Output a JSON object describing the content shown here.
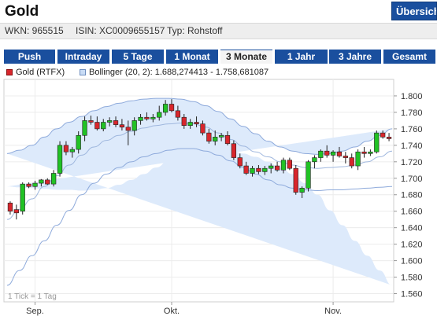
{
  "header": {
    "title": "Gold",
    "overview_button": "Übersicht"
  },
  "info": {
    "wkn": "WKN: 965515",
    "isin": "ISIN: XC0009655157",
    "typ": "Typ: Rohstoff"
  },
  "tabs": [
    {
      "label": "Push",
      "active": false
    },
    {
      "label": "Intraday",
      "active": false
    },
    {
      "label": "5 Tage",
      "active": false
    },
    {
      "label": "1 Monat",
      "active": false
    },
    {
      "label": "3 Monate",
      "active": true
    },
    {
      "label": "1 Jahr",
      "active": false
    },
    {
      "label": "3 Jahre",
      "active": false
    },
    {
      "label": "Gesamt",
      "active": false
    }
  ],
  "legend": {
    "gold_label": "Gold (RTFX)",
    "bollinger_label": "Bollinger (20, 2): 1.688,274413 - 1.758,681087",
    "gold_color": "#d8262c",
    "bollinger_color": "#c9dcf5"
  },
  "chart_data": {
    "type": "candlestick",
    "y_range": [
      1550,
      1820
    ],
    "y_ticks": [
      "1.800",
      "1.780",
      "1.760",
      "1.740",
      "1.720",
      "1.700",
      "1.680",
      "1.660",
      "1.640",
      "1.620",
      "1.600",
      "1.580",
      "1.560"
    ],
    "y_tick_values": [
      1800,
      1780,
      1760,
      1740,
      1720,
      1700,
      1680,
      1660,
      1640,
      1620,
      1600,
      1580,
      1560
    ],
    "x_ticks": [
      {
        "label": "Sep.",
        "index": 4
      },
      {
        "label": "Okt.",
        "index": 26
      },
      {
        "label": "Nov.",
        "index": 52
      }
    ],
    "note": "1 Tick = 1 Tag",
    "up_color": "#21c225",
    "down_color": "#d8262c",
    "candles": [
      [
        1670,
        1672,
        1656,
        1660
      ],
      [
        1662,
        1668,
        1650,
        1658
      ],
      [
        1660,
        1695,
        1656,
        1693
      ],
      [
        1693,
        1695,
        1688,
        1690
      ],
      [
        1690,
        1697,
        1686,
        1694
      ],
      [
        1694,
        1699,
        1690,
        1698
      ],
      [
        1698,
        1700,
        1692,
        1693
      ],
      [
        1693,
        1710,
        1690,
        1706
      ],
      [
        1706,
        1745,
        1702,
        1740
      ],
      [
        1740,
        1745,
        1728,
        1732
      ],
      [
        1732,
        1738,
        1725,
        1735
      ],
      [
        1735,
        1757,
        1730,
        1752
      ],
      [
        1752,
        1775,
        1745,
        1770
      ],
      [
        1770,
        1776,
        1765,
        1768
      ],
      [
        1768,
        1775,
        1758,
        1760
      ],
      [
        1760,
        1772,
        1757,
        1768
      ],
      [
        1768,
        1774,
        1763,
        1770
      ],
      [
        1770,
        1775,
        1762,
        1765
      ],
      [
        1765,
        1772,
        1758,
        1762
      ],
      [
        1762,
        1770,
        1740,
        1758
      ],
      [
        1758,
        1774,
        1752,
        1770
      ],
      [
        1770,
        1778,
        1765,
        1774
      ],
      [
        1774,
        1780,
        1770,
        1772
      ],
      [
        1772,
        1778,
        1768,
        1774
      ],
      [
        1774,
        1788,
        1770,
        1780
      ],
      [
        1780,
        1795,
        1776,
        1790
      ],
      [
        1790,
        1796,
        1780,
        1782
      ],
      [
        1782,
        1788,
        1770,
        1774
      ],
      [
        1774,
        1778,
        1760,
        1764
      ],
      [
        1764,
        1772,
        1760,
        1768
      ],
      [
        1768,
        1775,
        1762,
        1766
      ],
      [
        1766,
        1770,
        1752,
        1755
      ],
      [
        1755,
        1760,
        1742,
        1745
      ],
      [
        1745,
        1758,
        1740,
        1750
      ],
      [
        1750,
        1755,
        1745,
        1752
      ],
      [
        1752,
        1757,
        1740,
        1742
      ],
      [
        1742,
        1746,
        1722,
        1725
      ],
      [
        1725,
        1730,
        1712,
        1715
      ],
      [
        1715,
        1720,
        1704,
        1706
      ],
      [
        1706,
        1715,
        1702,
        1712
      ],
      [
        1712,
        1716,
        1705,
        1708
      ],
      [
        1708,
        1715,
        1704,
        1712
      ],
      [
        1712,
        1718,
        1706,
        1715
      ],
      [
        1715,
        1720,
        1708,
        1710
      ],
      [
        1710,
        1725,
        1706,
        1722
      ],
      [
        1722,
        1725,
        1710,
        1712
      ],
      [
        1712,
        1716,
        1680,
        1683
      ],
      [
        1683,
        1690,
        1676,
        1688
      ],
      [
        1688,
        1722,
        1684,
        1720
      ],
      [
        1720,
        1728,
        1712,
        1725
      ],
      [
        1725,
        1735,
        1720,
        1733
      ],
      [
        1733,
        1740,
        1725,
        1728
      ],
      [
        1728,
        1734,
        1720,
        1732
      ],
      [
        1732,
        1738,
        1725,
        1727
      ],
      [
        1727,
        1732,
        1718,
        1725
      ],
      [
        1725,
        1730,
        1712,
        1715
      ],
      [
        1715,
        1735,
        1710,
        1732
      ],
      [
        1732,
        1738,
        1725,
        1730
      ],
      [
        1730,
        1735,
        1727,
        1732
      ],
      [
        1732,
        1758,
        1730,
        1755
      ],
      [
        1755,
        1758,
        1748,
        1750
      ],
      [
        1750,
        1755,
        1745,
        1748
      ]
    ],
    "bollinger": {
      "upper": [
        1730,
        1734,
        1740,
        1750,
        1760,
        1768,
        1775,
        1782,
        1787,
        1791,
        1794,
        1796,
        1797,
        1797,
        1796,
        1793,
        1788,
        1781,
        1772,
        1763,
        1754,
        1745,
        1738,
        1733,
        1730,
        1729,
        1730,
        1733,
        1738,
        1745,
        1752,
        1760
      ],
      "middle": [
        1650,
        1662,
        1675,
        1690,
        1703,
        1716,
        1728,
        1738,
        1746,
        1752,
        1757,
        1761,
        1764,
        1766,
        1767,
        1766,
        1762,
        1755,
        1747,
        1739,
        1732,
        1726,
        1720,
        1716,
        1713,
        1712,
        1713,
        1714,
        1716,
        1720,
        1726,
        1733
      ],
      "lower": [
        1570,
        1588,
        1606,
        1624,
        1643,
        1661,
        1680,
        1694,
        1705,
        1713,
        1720,
        1726,
        1730,
        1734,
        1736,
        1736,
        1733,
        1728,
        1721,
        1713,
        1705,
        1698,
        1692,
        1688,
        1686,
        1685,
        1686,
        1686,
        1687,
        1688,
        1689,
        1690
      ]
    }
  }
}
